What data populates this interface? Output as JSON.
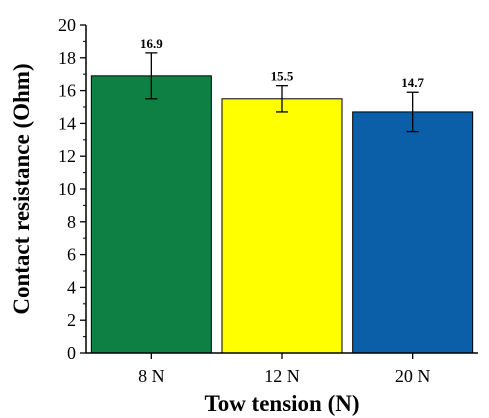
{
  "chart_data": {
    "type": "bar",
    "categories": [
      "8 N",
      "12 N",
      "20 N"
    ],
    "values": [
      16.9,
      15.5,
      14.7
    ],
    "errors": [
      1.4,
      0.8,
      1.2
    ],
    "data_labels": [
      "16.9",
      "15.5",
      "14.7"
    ],
    "bar_colors": [
      "#0f8044",
      "#ffff00",
      "#0a5fa8"
    ],
    "xlabel": "Tow tension (N)",
    "ylabel": "Contact resistance (Ohm)",
    "ylim": [
      0,
      20
    ],
    "yticks": [
      "0",
      "2",
      "4",
      "6",
      "8",
      "10",
      "12",
      "14",
      "16",
      "18",
      "20"
    ],
    "grid": false,
    "legend": "none"
  }
}
